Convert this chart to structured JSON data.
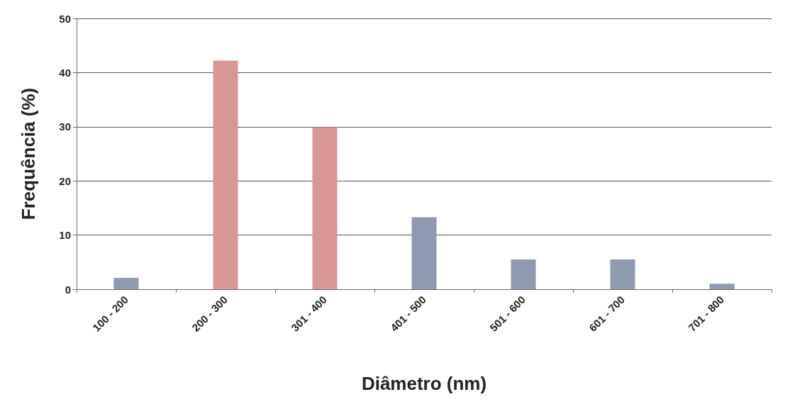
{
  "chart_data": {
    "type": "bar",
    "xlabel": "Diâmetro (nm)",
    "ylabel": "Frequência (%)",
    "categories": [
      "100 - 200",
      "200 - 300",
      "301 - 400",
      "401 - 500",
      "501 - 600",
      "601 - 700",
      "701 - 800"
    ],
    "values": [
      2.1,
      42.2,
      29.9,
      13.3,
      5.5,
      5.5,
      1.0
    ],
    "colors": [
      "#8e9ab0",
      "#d99694",
      "#d99694",
      "#8e9ab0",
      "#8e9ab0",
      "#8e9ab0",
      "#8e9ab0"
    ],
    "ylim": [
      0,
      50
    ],
    "yticks": [
      0,
      10,
      20,
      30,
      40,
      50
    ],
    "grid": "y"
  }
}
